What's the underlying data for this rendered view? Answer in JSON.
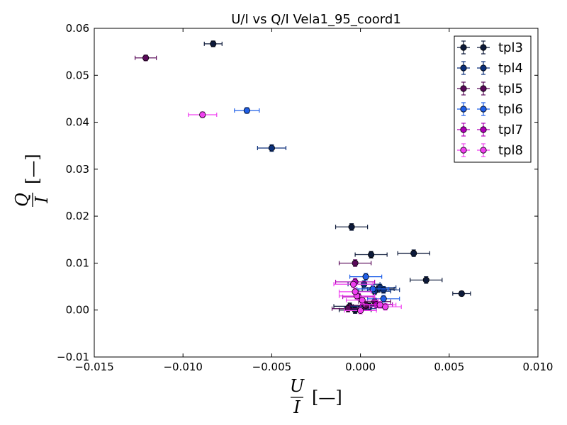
{
  "chart_data": {
    "type": "scatter",
    "title": "U/I vs Q/I Vela1_95_coord1",
    "xlabel": {
      "num": "U",
      "den": "I",
      "unit": "[—]"
    },
    "ylabel": {
      "num": "Q",
      "den": "I",
      "unit": "[—]"
    },
    "xlim": [
      -0.015,
      0.01
    ],
    "ylim": [
      -0.01,
      0.06
    ],
    "x_ticks": [
      -0.015,
      -0.01,
      -0.005,
      0.0,
      0.005,
      0.01
    ],
    "x_tick_labels": [
      "−0.015",
      "−0.010",
      "−0.005",
      "0.000",
      "0.005",
      "0.010"
    ],
    "y_ticks": [
      -0.01,
      0.0,
      0.01,
      0.02,
      0.03,
      0.04,
      0.05,
      0.06
    ],
    "y_tick_labels": [
      "−0.01",
      "0.00",
      "0.01",
      "0.02",
      "0.03",
      "0.04",
      "0.05",
      "0.06"
    ],
    "grid": false,
    "legend_position": "top-right",
    "series": [
      {
        "name": "tpl3",
        "color": "#0d1a3a",
        "points": [
          {
            "x": -0.0083,
            "y": 0.0567,
            "xerr": 0.0005,
            "yerr": 0.0006
          },
          {
            "x": -0.0005,
            "y": 0.0177,
            "xerr": 0.0009,
            "yerr": 0.0007
          },
          {
            "x": 0.0006,
            "y": 0.0118,
            "xerr": 0.0009,
            "yerr": 0.0007
          },
          {
            "x": 0.003,
            "y": 0.0121,
            "xerr": 0.0009,
            "yerr": 0.0007
          },
          {
            "x": 0.0037,
            "y": 0.0064,
            "xerr": 0.0009,
            "yerr": 0.0007
          },
          {
            "x": 0.0057,
            "y": 0.0035,
            "xerr": 0.0005,
            "yerr": 0.0005
          },
          {
            "x": -0.0006,
            "y": 0.0008,
            "xerr": 0.0009,
            "yerr": 0.0007
          },
          {
            "x": 0.0005,
            "y": 0.0008,
            "xerr": 0.0009,
            "yerr": 0.0007
          },
          {
            "x": -0.0003,
            "y": 0.0,
            "xerr": 0.0009,
            "yerr": 0.0007
          },
          {
            "x": 0.001,
            "y": 0.0045,
            "xerr": 0.0009,
            "yerr": 0.0007
          }
        ]
      },
      {
        "name": "tpl4",
        "color": "#0a2f7a",
        "points": [
          {
            "x": -0.005,
            "y": 0.0345,
            "xerr": 0.0008,
            "yerr": 0.0007
          },
          {
            "x": 0.0002,
            "y": 0.0055,
            "xerr": 0.0009,
            "yerr": 0.0007
          },
          {
            "x": 0.0011,
            "y": 0.0048,
            "xerr": 0.0009,
            "yerr": 0.0007
          },
          {
            "x": 0.0013,
            "y": 0.0043,
            "xerr": 0.0009,
            "yerr": 0.0007
          },
          {
            "x": 0.0008,
            "y": 0.004,
            "xerr": 0.0009,
            "yerr": 0.0007
          },
          {
            "x": 0.0003,
            "y": 0.0008,
            "xerr": 0.0009,
            "yerr": 0.0007
          },
          {
            "x": 0.0,
            "y": 0.0003,
            "xerr": 0.0009,
            "yerr": 0.0007
          }
        ]
      },
      {
        "name": "tpl5",
        "color": "#5a0a5a",
        "points": [
          {
            "x": -0.0121,
            "y": 0.0537,
            "xerr": 0.0006,
            "yerr": 0.0006
          },
          {
            "x": -0.0003,
            "y": 0.01,
            "xerr": 0.0009,
            "yerr": 0.0007
          },
          {
            "x": 0.0008,
            "y": 0.0018,
            "xerr": 0.0009,
            "yerr": 0.0007
          },
          {
            "x": -0.0007,
            "y": 0.0003,
            "xerr": 0.0009,
            "yerr": 0.0007
          },
          {
            "x": 0.0003,
            "y": 0.001,
            "xerr": 0.0009,
            "yerr": 0.0007
          }
        ]
      },
      {
        "name": "tpl6",
        "color": "#1f5fe8",
        "points": [
          {
            "x": -0.0064,
            "y": 0.0425,
            "xerr": 0.0007,
            "yerr": 0.0006
          },
          {
            "x": 0.0003,
            "y": 0.0071,
            "xerr": 0.0009,
            "yerr": 0.0007
          },
          {
            "x": 0.0013,
            "y": 0.0024,
            "xerr": 0.0009,
            "yerr": 0.0007
          },
          {
            "x": 0.0007,
            "y": 0.0045,
            "xerr": 0.0009,
            "yerr": 0.0007
          }
        ]
      },
      {
        "name": "tpl7",
        "color": "#b000b8",
        "points": [
          {
            "x": -0.0003,
            "y": 0.006,
            "xerr": 0.0011,
            "yerr": 0.0007
          },
          {
            "x": 0.0009,
            "y": 0.0012,
            "xerr": 0.0009,
            "yerr": 0.0007
          },
          {
            "x": -0.0001,
            "y": 0.0028,
            "xerr": 0.0009,
            "yerr": 0.0007
          }
        ]
      },
      {
        "name": "tpl8",
        "color": "#f040f0",
        "points": [
          {
            "x": -0.0089,
            "y": 0.0416,
            "xerr": 0.0008,
            "yerr": 0.0006
          },
          {
            "x": -0.0004,
            "y": 0.0055,
            "xerr": 0.0011,
            "yerr": 0.0007
          },
          {
            "x": -0.0002,
            "y": 0.003,
            "xerr": 0.001,
            "yerr": 0.0007
          },
          {
            "x": 0.0001,
            "y": 0.0021,
            "xerr": 0.0009,
            "yerr": 0.0007
          },
          {
            "x": 0.0014,
            "y": 0.0007,
            "xerr": 0.0009,
            "yerr": 0.0007
          },
          {
            "x": 0.0,
            "y": -0.0001,
            "xerr": 0.0009,
            "yerr": 0.0007
          },
          {
            "x": 0.0011,
            "y": 0.0011,
            "xerr": 0.0009,
            "yerr": 0.0007
          },
          {
            "x": -0.0003,
            "y": 0.0039,
            "xerr": 0.0009,
            "yerr": 0.0007
          }
        ]
      }
    ]
  }
}
